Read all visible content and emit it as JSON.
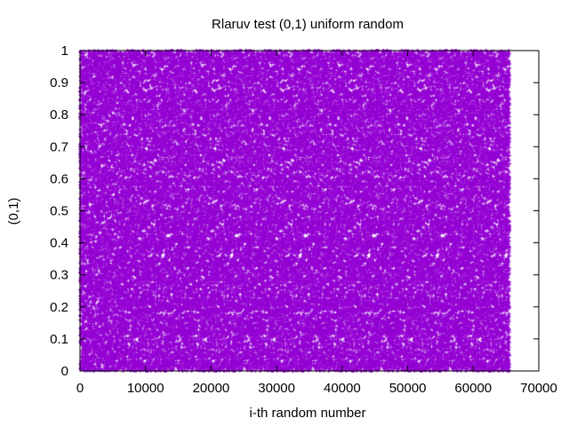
{
  "chart_data": {
    "type": "scatter",
    "title": "Rlaruv test (0,1) uniform random",
    "xlabel": "i-th random number",
    "ylabel": "(0,1)",
    "xlim": [
      0,
      70000
    ],
    "ylim": [
      0,
      1
    ],
    "x_ticks": [
      0,
      10000,
      20000,
      30000,
      40000,
      50000,
      60000,
      70000
    ],
    "x_tick_labels": [
      "0",
      "10000",
      "20000",
      "30000",
      "40000",
      "50000",
      "60000",
      "70000"
    ],
    "y_ticks": [
      0,
      0.1,
      0.2,
      0.3,
      0.4,
      0.5,
      0.6,
      0.7,
      0.8,
      0.9,
      1
    ],
    "y_tick_labels": [
      "0",
      "0.1",
      "0.2",
      "0.3",
      "0.4",
      "0.5",
      "0.6",
      "0.7",
      "0.8",
      "0.9",
      "1"
    ],
    "series": [
      {
        "point_count": 65536,
        "x_range": [
          1,
          65536
        ],
        "y_range": [
          0,
          1
        ],
        "distribution": "uniform",
        "color": "#9400D3"
      }
    ],
    "grid": false,
    "legend": "none"
  }
}
